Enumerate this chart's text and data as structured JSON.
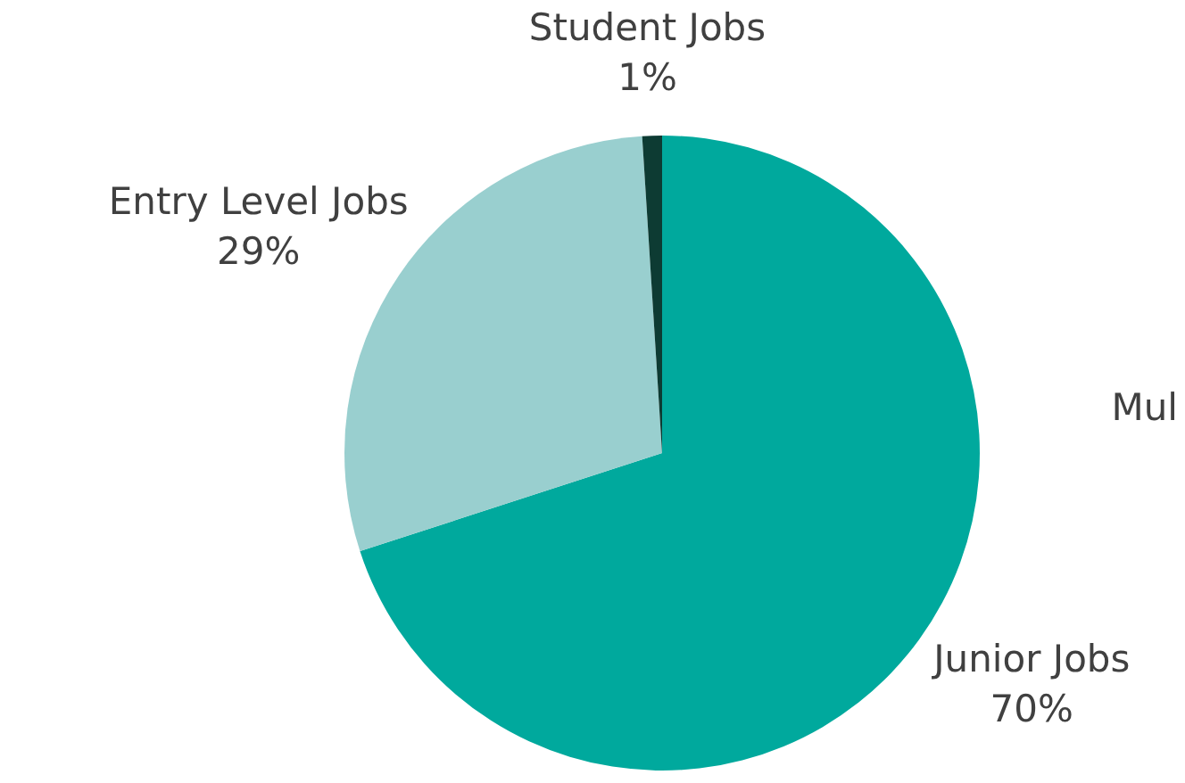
{
  "chart_data": {
    "type": "pie",
    "categories": [
      "Junior Jobs",
      "Entry Level Jobs",
      "Student Jobs"
    ],
    "values": [
      70,
      29,
      1
    ],
    "colors": [
      "#00a99d",
      "#99cfcf",
      "#0d3b33"
    ],
    "value_labels": [
      "70%",
      "29%",
      "1%"
    ],
    "annotations": [
      "Mul"
    ],
    "legend": false
  }
}
